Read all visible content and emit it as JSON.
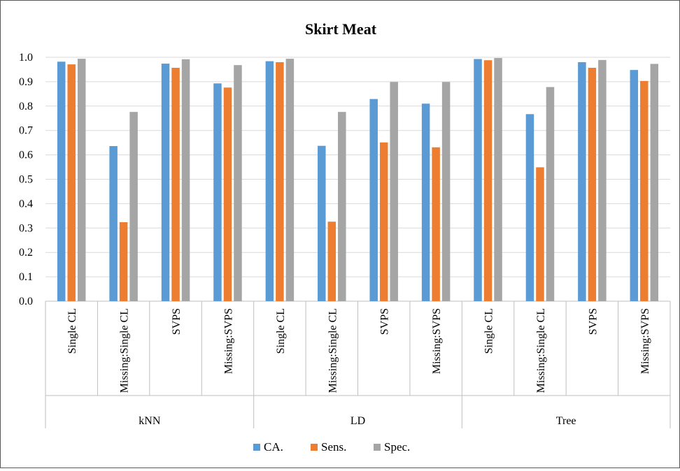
{
  "chart_data": {
    "type": "bar",
    "title": "Skirt Meat",
    "ylim": [
      0,
      1.0
    ],
    "ytick_step": 0.1,
    "yticks": [
      "0.0",
      "0.1",
      "0.2",
      "0.3",
      "0.4",
      "0.5",
      "0.6",
      "0.7",
      "0.8",
      "0.9",
      "1.0"
    ],
    "grid": true,
    "legend_position": "bottom",
    "groups": [
      {
        "name": "kNN",
        "categories": [
          "Single CL",
          "Missing:Single CL",
          "SVPS",
          "Missing:SVPS"
        ]
      },
      {
        "name": "LD",
        "categories": [
          "Single CL",
          "Missing:Single CL",
          "SVPS",
          "Missing:SVPS"
        ]
      },
      {
        "name": "Tree",
        "categories": [
          "Single CL",
          "Missing:Single CL",
          "SVPS",
          "Missing:SVPS"
        ]
      }
    ],
    "series": [
      {
        "name": "CA.",
        "color": "#5b9bd5",
        "values": [
          0.982,
          0.636,
          0.974,
          0.893,
          0.984,
          0.637,
          0.829,
          0.81,
          0.993,
          0.767,
          0.98,
          0.948
        ]
      },
      {
        "name": "Sens.",
        "color": "#ed7d31",
        "values": [
          0.971,
          0.324,
          0.957,
          0.876,
          0.98,
          0.326,
          0.651,
          0.631,
          0.988,
          0.549,
          0.957,
          0.903
        ]
      },
      {
        "name": "Spec.",
        "color": "#a5a5a5",
        "values": [
          0.994,
          0.776,
          0.992,
          0.968,
          0.994,
          0.776,
          0.899,
          0.899,
          0.997,
          0.878,
          0.989,
          0.973
        ]
      }
    ]
  },
  "colors": {
    "grid": "#d9d9d9",
    "axis": "#bfbfbf",
    "frame": "#595959"
  }
}
